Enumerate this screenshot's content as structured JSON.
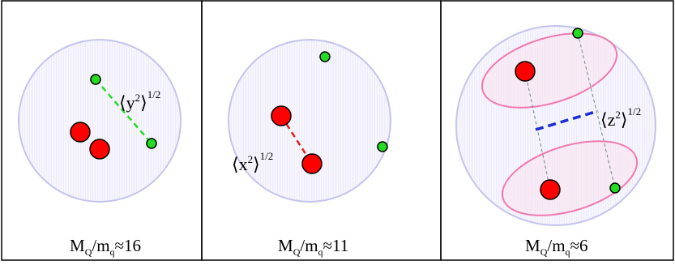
{
  "panels": [
    {
      "caption": {
        "main1": "M",
        "sub1": "Q",
        "slash": "/m",
        "sub2": "q",
        "tail": "≈16"
      },
      "label": {
        "main": "⟨y",
        "sup1": "2",
        "close": "⟩",
        "sup2": "1/2"
      }
    },
    {
      "caption": {
        "main1": "M",
        "sub1": "Q",
        "slash": "/m",
        "sub2": "q",
        "tail": "≈11"
      },
      "label": {
        "main": "⟨x",
        "sup1": "2",
        "close": "⟩",
        "sup2": "1/2"
      }
    },
    {
      "caption": {
        "main1": "M",
        "sub1": "Q",
        "slash": "/m",
        "sub2": "q",
        "tail": "≈6"
      },
      "label": {
        "main": "⟨z",
        "sup1": "2",
        "close": "⟩",
        "sup2": "1/2"
      }
    }
  ],
  "colors": {
    "heavy_quark": "#ff0000",
    "light_quark": "#22dd22",
    "cloud_fill": "#f4f2fb",
    "cloud_stroke": "#c4c4ee",
    "diquark_ellipse": "#f07ab0",
    "y_line": "#22dd22",
    "x_line": "#e02020",
    "z_line": "#1a2ed6",
    "connector": "#6a8a96"
  }
}
